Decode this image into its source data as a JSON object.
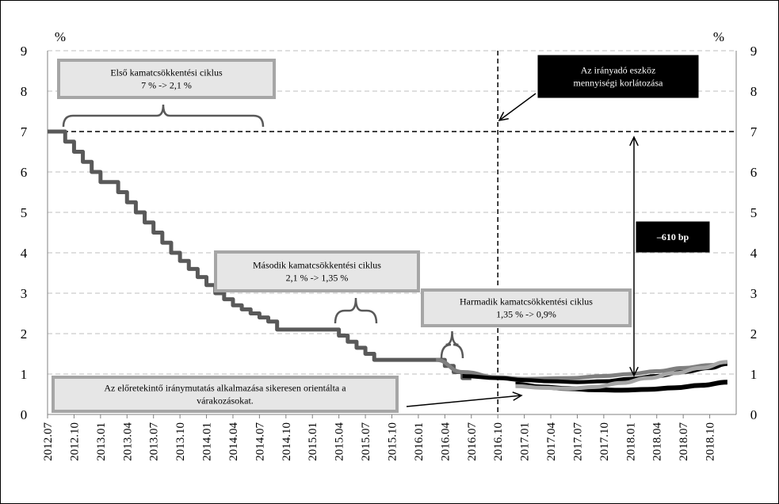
{
  "chart_data": {
    "type": "line",
    "x_labels": [
      "2012.07",
      "2012.10",
      "2013.01",
      "2013.04",
      "2013.07",
      "2013.10",
      "2014.01",
      "2014.04",
      "2014.07",
      "2014.10",
      "2015.01",
      "2015.04",
      "2015.07",
      "2015.10",
      "2016.01",
      "2016.04",
      "2016.07",
      "2016.10",
      "2017.01",
      "2017.04",
      "2017.07",
      "2017.10",
      "2018.01",
      "2018.04",
      "2018.07",
      "2018.10"
    ],
    "ylim": [
      0,
      9
    ],
    "yticks": [
      "0",
      "1",
      "2",
      "3",
      "4",
      "5",
      "6",
      "7",
      "8",
      "9"
    ],
    "y_unit_left": "%",
    "y_unit_right": "%",
    "grid": true,
    "reference_lines": {
      "horizontal_y": 7,
      "vertical_x": "2016.10"
    },
    "series": [
      {
        "style": "step",
        "color": "#595959",
        "points": [
          [
            "2012.07",
            7.0
          ],
          [
            "2012.08",
            7.0
          ],
          [
            "2012.09",
            6.75
          ],
          [
            "2012.10",
            6.5
          ],
          [
            "2012.11",
            6.25
          ],
          [
            "2012.12",
            6.0
          ],
          [
            "2013.01",
            5.75
          ],
          [
            "2013.02",
            5.75
          ],
          [
            "2013.03",
            5.5
          ],
          [
            "2013.04",
            5.25
          ],
          [
            "2013.05",
            5.0
          ],
          [
            "2013.06",
            4.75
          ],
          [
            "2013.07",
            4.5
          ],
          [
            "2013.08",
            4.25
          ],
          [
            "2013.09",
            4.0
          ],
          [
            "2013.10",
            3.8
          ],
          [
            "2013.11",
            3.6
          ],
          [
            "2013.12",
            3.4
          ],
          [
            "2014.01",
            3.2
          ],
          [
            "2014.02",
            3.0
          ],
          [
            "2014.03",
            2.85
          ],
          [
            "2014.04",
            2.7
          ],
          [
            "2014.05",
            2.6
          ],
          [
            "2014.06",
            2.5
          ],
          [
            "2014.07",
            2.4
          ],
          [
            "2014.08",
            2.3
          ],
          [
            "2014.09",
            2.1
          ],
          [
            "2015.03",
            2.1
          ],
          [
            "2015.04",
            1.95
          ],
          [
            "2015.05",
            1.8
          ],
          [
            "2015.06",
            1.65
          ],
          [
            "2015.07",
            1.5
          ],
          [
            "2015.08",
            1.35
          ],
          [
            "2016.03",
            1.35
          ],
          [
            "2016.04",
            1.2
          ],
          [
            "2016.05",
            1.05
          ],
          [
            "2016.06",
            0.9
          ],
          [
            "2016.07",
            0.9
          ]
        ]
      },
      {
        "style": "smooth",
        "color": "#7f7f7f",
        "points": [
          [
            "2016.03",
            1.35
          ],
          [
            "2016.06",
            1.05
          ],
          [
            "2016.10",
            0.92
          ],
          [
            "2017.01",
            0.88
          ],
          [
            "2017.06",
            0.9
          ],
          [
            "2017.10",
            0.95
          ],
          [
            "2018.01",
            1.0
          ],
          [
            "2018.04",
            1.07
          ],
          [
            "2018.07",
            1.15
          ],
          [
            "2018.10",
            1.22
          ],
          [
            "2018.12",
            1.28
          ]
        ]
      },
      {
        "style": "smooth",
        "color": "#000000",
        "points": [
          [
            "2016.06",
            0.95
          ],
          [
            "2016.10",
            0.9
          ],
          [
            "2017.01",
            0.85
          ],
          [
            "2017.04",
            0.82
          ],
          [
            "2017.07",
            0.8
          ],
          [
            "2017.10",
            0.82
          ],
          [
            "2018.01",
            0.88
          ],
          [
            "2018.04",
            0.95
          ],
          [
            "2018.07",
            1.05
          ],
          [
            "2018.10",
            1.15
          ],
          [
            "2018.12",
            1.25
          ]
        ]
      },
      {
        "style": "smooth",
        "color": "#000000",
        "points": [
          [
            "2016.12",
            0.75
          ],
          [
            "2017.03",
            0.68
          ],
          [
            "2017.06",
            0.64
          ],
          [
            "2017.09",
            0.61
          ],
          [
            "2017.12",
            0.6
          ],
          [
            "2018.03",
            0.62
          ],
          [
            "2018.06",
            0.66
          ],
          [
            "2018.09",
            0.72
          ],
          [
            "2018.12",
            0.8
          ]
        ]
      },
      {
        "style": "smooth",
        "color": "#a6a6a6",
        "points": [
          [
            "2016.12",
            0.7
          ],
          [
            "2017.03",
            0.66
          ],
          [
            "2017.06",
            0.64
          ],
          [
            "2017.09",
            0.68
          ],
          [
            "2017.12",
            0.78
          ],
          [
            "2018.03",
            0.9
          ],
          [
            "2018.06",
            1.02
          ],
          [
            "2018.09",
            1.15
          ],
          [
            "2018.12",
            1.3
          ]
        ]
      }
    ],
    "annotations": [
      {
        "id": "cycle1",
        "lines": [
          "Első kamatcsökkentési ciklus",
          "7 % -> 2,1 %"
        ]
      },
      {
        "id": "cycle2",
        "lines": [
          "Második kamatcsökkentési ciklus",
          "2,1 % -> 1,35 %"
        ]
      },
      {
        "id": "cycle3",
        "lines": [
          "Harmadik kamatcsökkentési ciklus",
          "1,35 % -> 0,9%"
        ]
      },
      {
        "id": "guidance",
        "lines": [
          "Az előretekintő iránymutatás alkalmazása sikeresen orientálta a",
          "várakozásokat."
        ]
      },
      {
        "id": "limit",
        "lines": [
          "Az irányadó eszköz",
          "mennyiségi korlátozása"
        ]
      },
      {
        "id": "bp",
        "lines": [
          "–610 bp"
        ]
      }
    ]
  }
}
